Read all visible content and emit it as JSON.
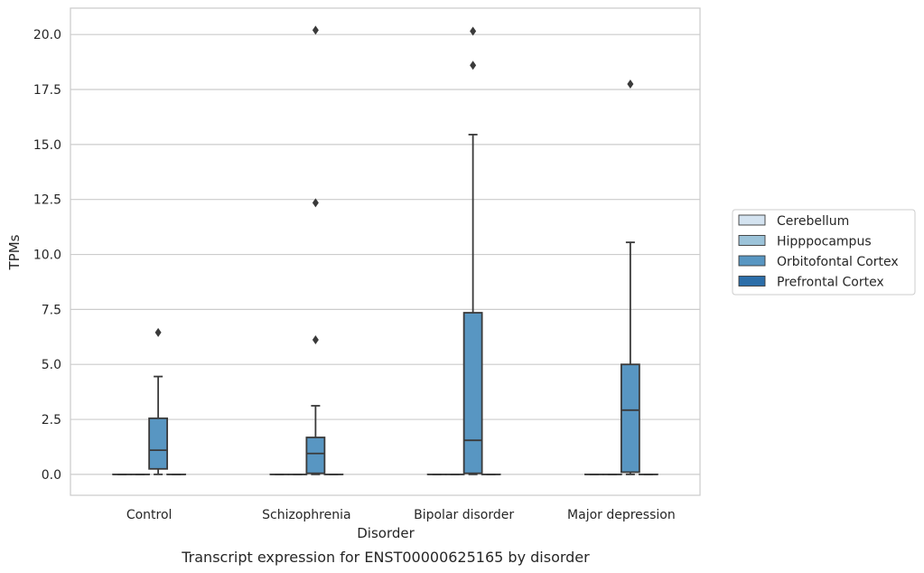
{
  "chart_data": {
    "type": "box",
    "xlabel": "Disorder",
    "ylabel": "TPMs",
    "caption": "Transcript expression for ENST00000625165 by disorder",
    "ylim": [
      -0.95,
      21.2
    ],
    "yticks": [
      "0.0",
      "2.5",
      "5.0",
      "7.5",
      "10.0",
      "12.5",
      "15.0",
      "17.5",
      "20.0"
    ],
    "grid": "horizontal",
    "legend_position": "right",
    "categories": [
      "Control",
      "Schizophrenia",
      "Bipolar disorder",
      "Major depression"
    ],
    "series": [
      {
        "name": "Cerebellum",
        "color": "#d4e3f0",
        "boxes": [
          {
            "min": 0,
            "q1": 0,
            "median": 0,
            "q3": 0,
            "max": 0,
            "outliers": []
          },
          {
            "min": 0,
            "q1": 0,
            "median": 0,
            "q3": 0,
            "max": 0,
            "outliers": []
          },
          {
            "min": 0,
            "q1": 0,
            "median": 0,
            "q3": 0,
            "max": 0,
            "outliers": []
          },
          {
            "min": 0,
            "q1": 0,
            "median": 0,
            "q3": 0,
            "max": 0,
            "outliers": []
          }
        ]
      },
      {
        "name": "Hipppocampus",
        "color": "#9cc3d9",
        "boxes": [
          {
            "min": 0,
            "q1": 0,
            "median": 0,
            "q3": 0,
            "max": 0,
            "outliers": []
          },
          {
            "min": 0,
            "q1": 0,
            "median": 0,
            "q3": 0,
            "max": 0,
            "outliers": []
          },
          {
            "min": 0,
            "q1": 0,
            "median": 0,
            "q3": 0,
            "max": 0,
            "outliers": []
          },
          {
            "min": 0,
            "q1": 0,
            "median": 0,
            "q3": 0,
            "max": 0,
            "outliers": []
          }
        ]
      },
      {
        "name": "Orbitofontal Cortex",
        "color": "#5896c2",
        "boxes": [
          {
            "min": 0.0,
            "q1": 0.25,
            "median": 1.1,
            "q3": 2.55,
            "max": 4.45,
            "outliers": [
              6.45
            ]
          },
          {
            "min": 0.0,
            "q1": 0.05,
            "median": 0.95,
            "q3": 1.68,
            "max": 3.12,
            "outliers": [
              6.12,
              12.35,
              20.2
            ]
          },
          {
            "min": 0.0,
            "q1": 0.05,
            "median": 1.55,
            "q3": 7.35,
            "max": 15.45,
            "outliers": [
              18.6,
              20.15
            ]
          },
          {
            "min": 0.0,
            "q1": 0.1,
            "median": 2.92,
            "q3": 5.0,
            "max": 10.55,
            "outliers": [
              17.75
            ]
          }
        ]
      },
      {
        "name": "Prefrontal Cortex",
        "color": "#2c6ea9",
        "boxes": [
          {
            "min": 0,
            "q1": 0,
            "median": 0,
            "q3": 0,
            "max": 0,
            "outliers": []
          },
          {
            "min": 0,
            "q1": 0,
            "median": 0,
            "q3": 0,
            "max": 0,
            "outliers": []
          },
          {
            "min": 0,
            "q1": 0,
            "median": 0,
            "q3": 0,
            "max": 0,
            "outliers": []
          },
          {
            "min": 0,
            "q1": 0,
            "median": 0,
            "q3": 0,
            "max": 0,
            "outliers": []
          }
        ]
      }
    ]
  }
}
